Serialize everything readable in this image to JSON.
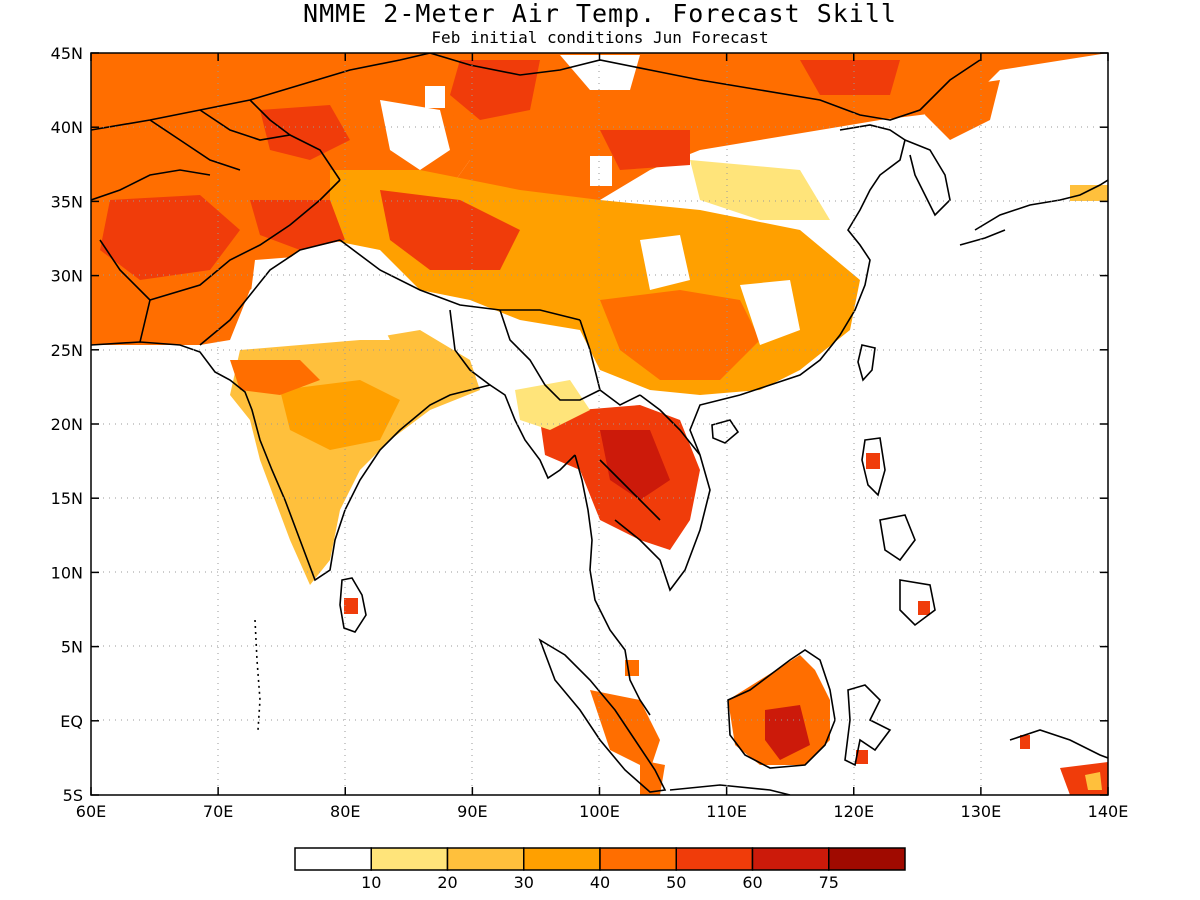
{
  "title": "NMME 2-Meter Air Temp. Forecast Skill",
  "subtitle": "Feb initial conditions  Jun Forecast",
  "map": {
    "lon_range": [
      60,
      140
    ],
    "lat_range": [
      -5,
      45
    ],
    "x_ticks": [
      "60E",
      "70E",
      "80E",
      "90E",
      "100E",
      "110E",
      "120E",
      "130E",
      "140E"
    ],
    "y_ticks": [
      "45N",
      "40N",
      "35N",
      "30N",
      "25N",
      "20N",
      "15N",
      "10N",
      "5N",
      "EQ",
      "5S"
    ],
    "gridlines": "dotted"
  },
  "colorbar": {
    "colors": [
      "#ffffff",
      "#ffe47a",
      "#ffc03c",
      "#ffa000",
      "#ff6e00",
      "#f03c0a",
      "#cc1a0a",
      "#a00a00"
    ],
    "labels": [
      "10",
      "20",
      "30",
      "40",
      "50",
      "60",
      "75"
    ]
  }
}
